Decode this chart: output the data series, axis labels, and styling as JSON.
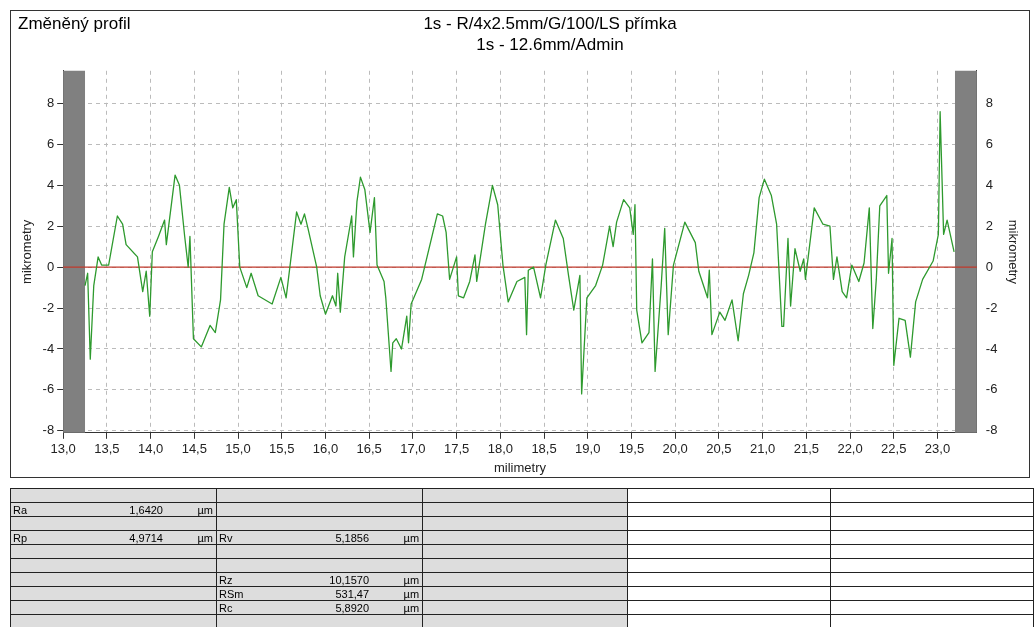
{
  "chart_data": {
    "type": "line",
    "title": "Změněný profil",
    "subtitle": "1s - R/4x2.5mm/G/100/LS přímka\n1s - 12.6mm/Admin",
    "xlabel": "milimetry",
    "ylabel": "mikrometry",
    "y2label": "mikrometry",
    "x": [
      13.25,
      13.28,
      13.31,
      13.35,
      13.4,
      13.44,
      13.52,
      13.62,
      13.68,
      13.72,
      13.85,
      13.91,
      13.95,
      13.99,
      14.02,
      14.09,
      14.16,
      14.18,
      14.28,
      14.33,
      14.39,
      14.43,
      14.45,
      14.49,
      14.58,
      14.68,
      14.74,
      14.8,
      14.84,
      14.9,
      14.94,
      14.98,
      15.02,
      15.1,
      15.15,
      15.23,
      15.39,
      15.49,
      15.55,
      15.67,
      15.72,
      15.76,
      15.8,
      15.9,
      15.94,
      16.0,
      16.08,
      16.12,
      16.14,
      16.17,
      16.22,
      16.3,
      16.32,
      16.36,
      16.4,
      16.45,
      16.51,
      16.56,
      16.59,
      16.67,
      16.69,
      16.75,
      16.77,
      16.81,
      16.87,
      16.93,
      16.95,
      16.98,
      17.1,
      17.28,
      17.34,
      17.38,
      17.42,
      17.5,
      17.52,
      17.58,
      17.65,
      17.71,
      17.73,
      17.83,
      17.91,
      17.97,
      18.03,
      18.09,
      18.19,
      18.28,
      18.3,
      18.32,
      18.38,
      18.46,
      18.52,
      18.63,
      18.72,
      18.78,
      18.84,
      18.91,
      18.93,
      18.99,
      19.09,
      19.17,
      19.25,
      19.29,
      19.33,
      19.41,
      19.48,
      19.52,
      19.54,
      19.56,
      19.62,
      19.7,
      19.74,
      19.77,
      19.84,
      19.88,
      19.92,
      19.98,
      20.11,
      20.23,
      20.27,
      20.37,
      20.39,
      20.42,
      20.51,
      20.57,
      20.65,
      20.72,
      20.78,
      20.84,
      20.9,
      20.96,
      21.02,
      21.1,
      21.16,
      21.22,
      21.24,
      21.29,
      21.32,
      21.37,
      21.43,
      21.47,
      21.49,
      21.59,
      21.69,
      21.77,
      21.81,
      21.85,
      21.91,
      21.96,
      22.02,
      22.1,
      22.16,
      22.22,
      22.26,
      22.3,
      22.34,
      22.42,
      22.44,
      22.48,
      22.5,
      22.56,
      22.63,
      22.69,
      22.75,
      22.83,
      22.95,
      23.01,
      23.03,
      23.07,
      23.11,
      23.19
    ],
    "series": [
      {
        "color": "#2e9a2e",
        "values": [
          -0.9,
          -0.3,
          -4.5,
          -0.9,
          0.5,
          0.1,
          0.1,
          2.5,
          2.1,
          1.1,
          0.5,
          -1.2,
          -0.2,
          -2.4,
          0.75,
          1.5,
          2.3,
          1.1,
          4.5,
          4.0,
          1.5,
          0,
          1.5,
          -3.5,
          -3.9,
          -2.85,
          -3.2,
          -1.6,
          2.1,
          3.9,
          2.9,
          3.3,
          0,
          -1.0,
          -0.3,
          -1.4,
          -1.8,
          -0.5,
          -1.5,
          2.7,
          2.1,
          2.6,
          1.9,
          0,
          -1.4,
          -2.3,
          -1.4,
          -1.9,
          -0.3,
          -2.2,
          0.5,
          2.5,
          0.5,
          3.2,
          4.4,
          3.8,
          1.7,
          3.4,
          0.1,
          -0.7,
          -1.5,
          -5.1,
          -3.7,
          -3.5,
          -4.0,
          -2.4,
          -3.7,
          -1.8,
          -0.6,
          2.6,
          2.5,
          1.7,
          -0.6,
          0.5,
          -1.4,
          -1.5,
          -0.7,
          0.6,
          -0.7,
          2.1,
          4.0,
          3.05,
          0.1,
          -1.7,
          -0.7,
          -0.5,
          -3.3,
          -0.15,
          0,
          -1.5,
          0.1,
          2.3,
          1.4,
          -0.4,
          -2.1,
          -0.4,
          -6.2,
          -1.5,
          -0.9,
          0.1,
          2.0,
          1.0,
          2.2,
          3.3,
          2.9,
          1.6,
          3.05,
          -2.1,
          -3.7,
          -3.2,
          0.4,
          -5.1,
          -0.9,
          1.9,
          -3.3,
          0.1,
          2.2,
          1.2,
          -0.2,
          -1.5,
          -0.15,
          -3.3,
          -2.2,
          -2.6,
          -1.6,
          -3.6,
          -1.3,
          -0.4,
          0.7,
          3.4,
          4.3,
          3.5,
          2.1,
          -2.9,
          -2.9,
          1.4,
          -1.9,
          0.9,
          -0.2,
          0.4,
          -0.6,
          2.9,
          2.1,
          2.0,
          -0.6,
          0.5,
          -1.2,
          -1.5,
          0.1,
          -0.7,
          0.2,
          2.9,
          -3.0,
          -0.6,
          3.0,
          3.5,
          -0.3,
          1.4,
          -4.8,
          -2.5,
          -2.6,
          -4.4,
          -1.7,
          -0.6,
          0.3,
          1.6,
          7.6,
          1.6,
          2.3,
          0.75
        ]
      }
    ],
    "xlim": [
      13.0,
      23.45
    ],
    "xticks": [
      {
        "value": 13.0,
        "label": "13,0"
      },
      {
        "value": 13.5,
        "label": "13,5"
      },
      {
        "value": 14.0,
        "label": "14,0"
      },
      {
        "value": 14.5,
        "label": "14,5"
      },
      {
        "value": 15.0,
        "label": "15,0"
      },
      {
        "value": 15.5,
        "label": "15,5"
      },
      {
        "value": 16.0,
        "label": "16,0"
      },
      {
        "value": 16.5,
        "label": "16,5"
      },
      {
        "value": 17.0,
        "label": "17,0"
      },
      {
        "value": 17.5,
        "label": "17,5"
      },
      {
        "value": 18.0,
        "label": "18,0"
      },
      {
        "value": 18.5,
        "label": "18,5"
      },
      {
        "value": 19.0,
        "label": "19,0"
      },
      {
        "value": 19.5,
        "label": "19,5"
      },
      {
        "value": 20.0,
        "label": "20,0"
      },
      {
        "value": 20.5,
        "label": "20,5"
      },
      {
        "value": 21.0,
        "label": "21,0"
      },
      {
        "value": 21.5,
        "label": "21,5"
      },
      {
        "value": 22.0,
        "label": "22,0"
      },
      {
        "value": 22.5,
        "label": "22,5"
      },
      {
        "value": 23.0,
        "label": "23,0"
      }
    ],
    "ylim": [
      -8.1,
      9.6
    ],
    "yticks": [
      -8,
      -6,
      -4,
      -2,
      0,
      2,
      4,
      6,
      8
    ],
    "y2lim": [
      -8.1,
      9.6
    ],
    "y2ticks": [
      -8,
      -6,
      -4,
      -2,
      0,
      2,
      4,
      6,
      8
    ],
    "ref_lines": [
      {
        "axis": "y",
        "value": 0,
        "color": "#c0392b"
      }
    ],
    "bands": [
      {
        "axis": "x",
        "from": 13.0,
        "to": 13.25,
        "color": "#808080"
      },
      {
        "axis": "x",
        "from": 23.2,
        "to": 23.45,
        "color": "#808080"
      }
    ],
    "grid": true,
    "legend": false,
    "marker": "none",
    "line_style": "solid",
    "annotations": [
      "Ra 1,6420 µm",
      "Rp 4,9714 µm",
      "Rv 5,1856 µm",
      "Rz 10,1570 µm",
      "RSm 531,47 µm",
      "Rc 5,8920 µm"
    ]
  }
}
